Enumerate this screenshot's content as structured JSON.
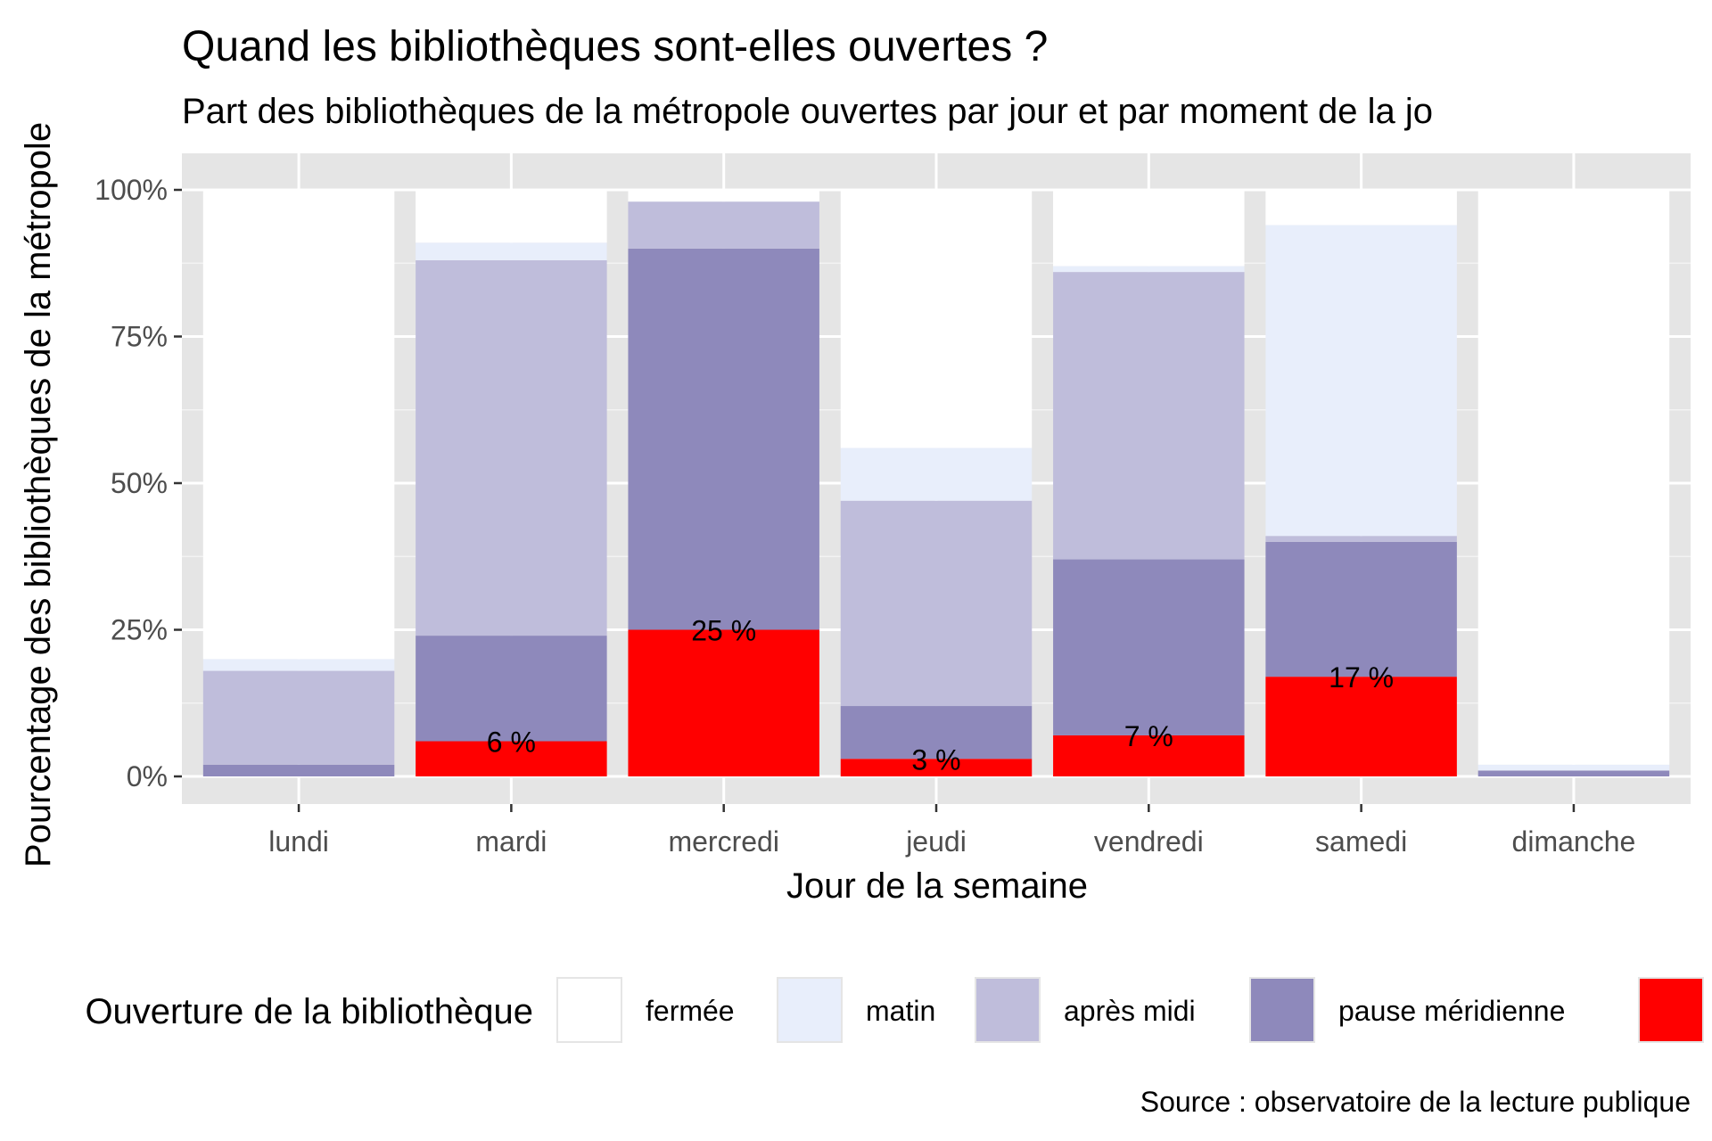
{
  "chart_data": {
    "type": "bar",
    "stacked": true,
    "title": "Quand les bibliothèques sont-elles ouvertes ?",
    "subtitle": "Part des bibliothèques de la métropole ouvertes par jour et par moment de la jo",
    "xlabel": "Jour de la semaine",
    "ylabel": "Pourcentage des bibliothèques de la métropole",
    "ylim": [
      0,
      100
    ],
    "yticks": [
      {
        "value": 0,
        "label": "0%"
      },
      {
        "value": 25,
        "label": "25%"
      },
      {
        "value": 50,
        "label": "50%"
      },
      {
        "value": 75,
        "label": "75%"
      },
      {
        "value": 100,
        "label": "100%"
      }
    ],
    "categories": [
      "lundi",
      "mardi",
      "mercredi",
      "jeudi",
      "vendredi",
      "samedi",
      "dimanche"
    ],
    "grid": true,
    "legend": {
      "title": "Ouverture de la bibliothèque",
      "position": "bottom"
    },
    "series": [
      {
        "name": "",
        "color": "#ff0000",
        "values": [
          0,
          6,
          25,
          3,
          7,
          17,
          0
        ]
      },
      {
        "name": "pause méridienne",
        "color": "#8e89bb",
        "values": [
          2,
          18,
          65,
          9,
          30,
          23,
          1
        ]
      },
      {
        "name": "après midi",
        "color": "#bfbddb",
        "values": [
          16,
          64,
          8,
          35,
          49,
          1,
          0
        ]
      },
      {
        "name": "matin",
        "color": "#e8eefb",
        "values": [
          2,
          3,
          0,
          9,
          1,
          53,
          1
        ]
      },
      {
        "name": "fermée",
        "color": "#ffffff",
        "values": [
          80,
          9,
          2,
          44,
          13,
          6,
          98
        ]
      }
    ],
    "legend_order": [
      "fermée",
      "matin",
      "après midi",
      "pause méridienne",
      ""
    ],
    "data_labels": [
      {
        "category": "mardi",
        "text": "6 %"
      },
      {
        "category": "mercredi",
        "text": "25 %"
      },
      {
        "category": "jeudi",
        "text": "3 %"
      },
      {
        "category": "vendredi",
        "text": "7 %"
      },
      {
        "category": "samedi",
        "text": "17 %"
      }
    ],
    "caption": "Source : observatoire de la lecture publique"
  }
}
